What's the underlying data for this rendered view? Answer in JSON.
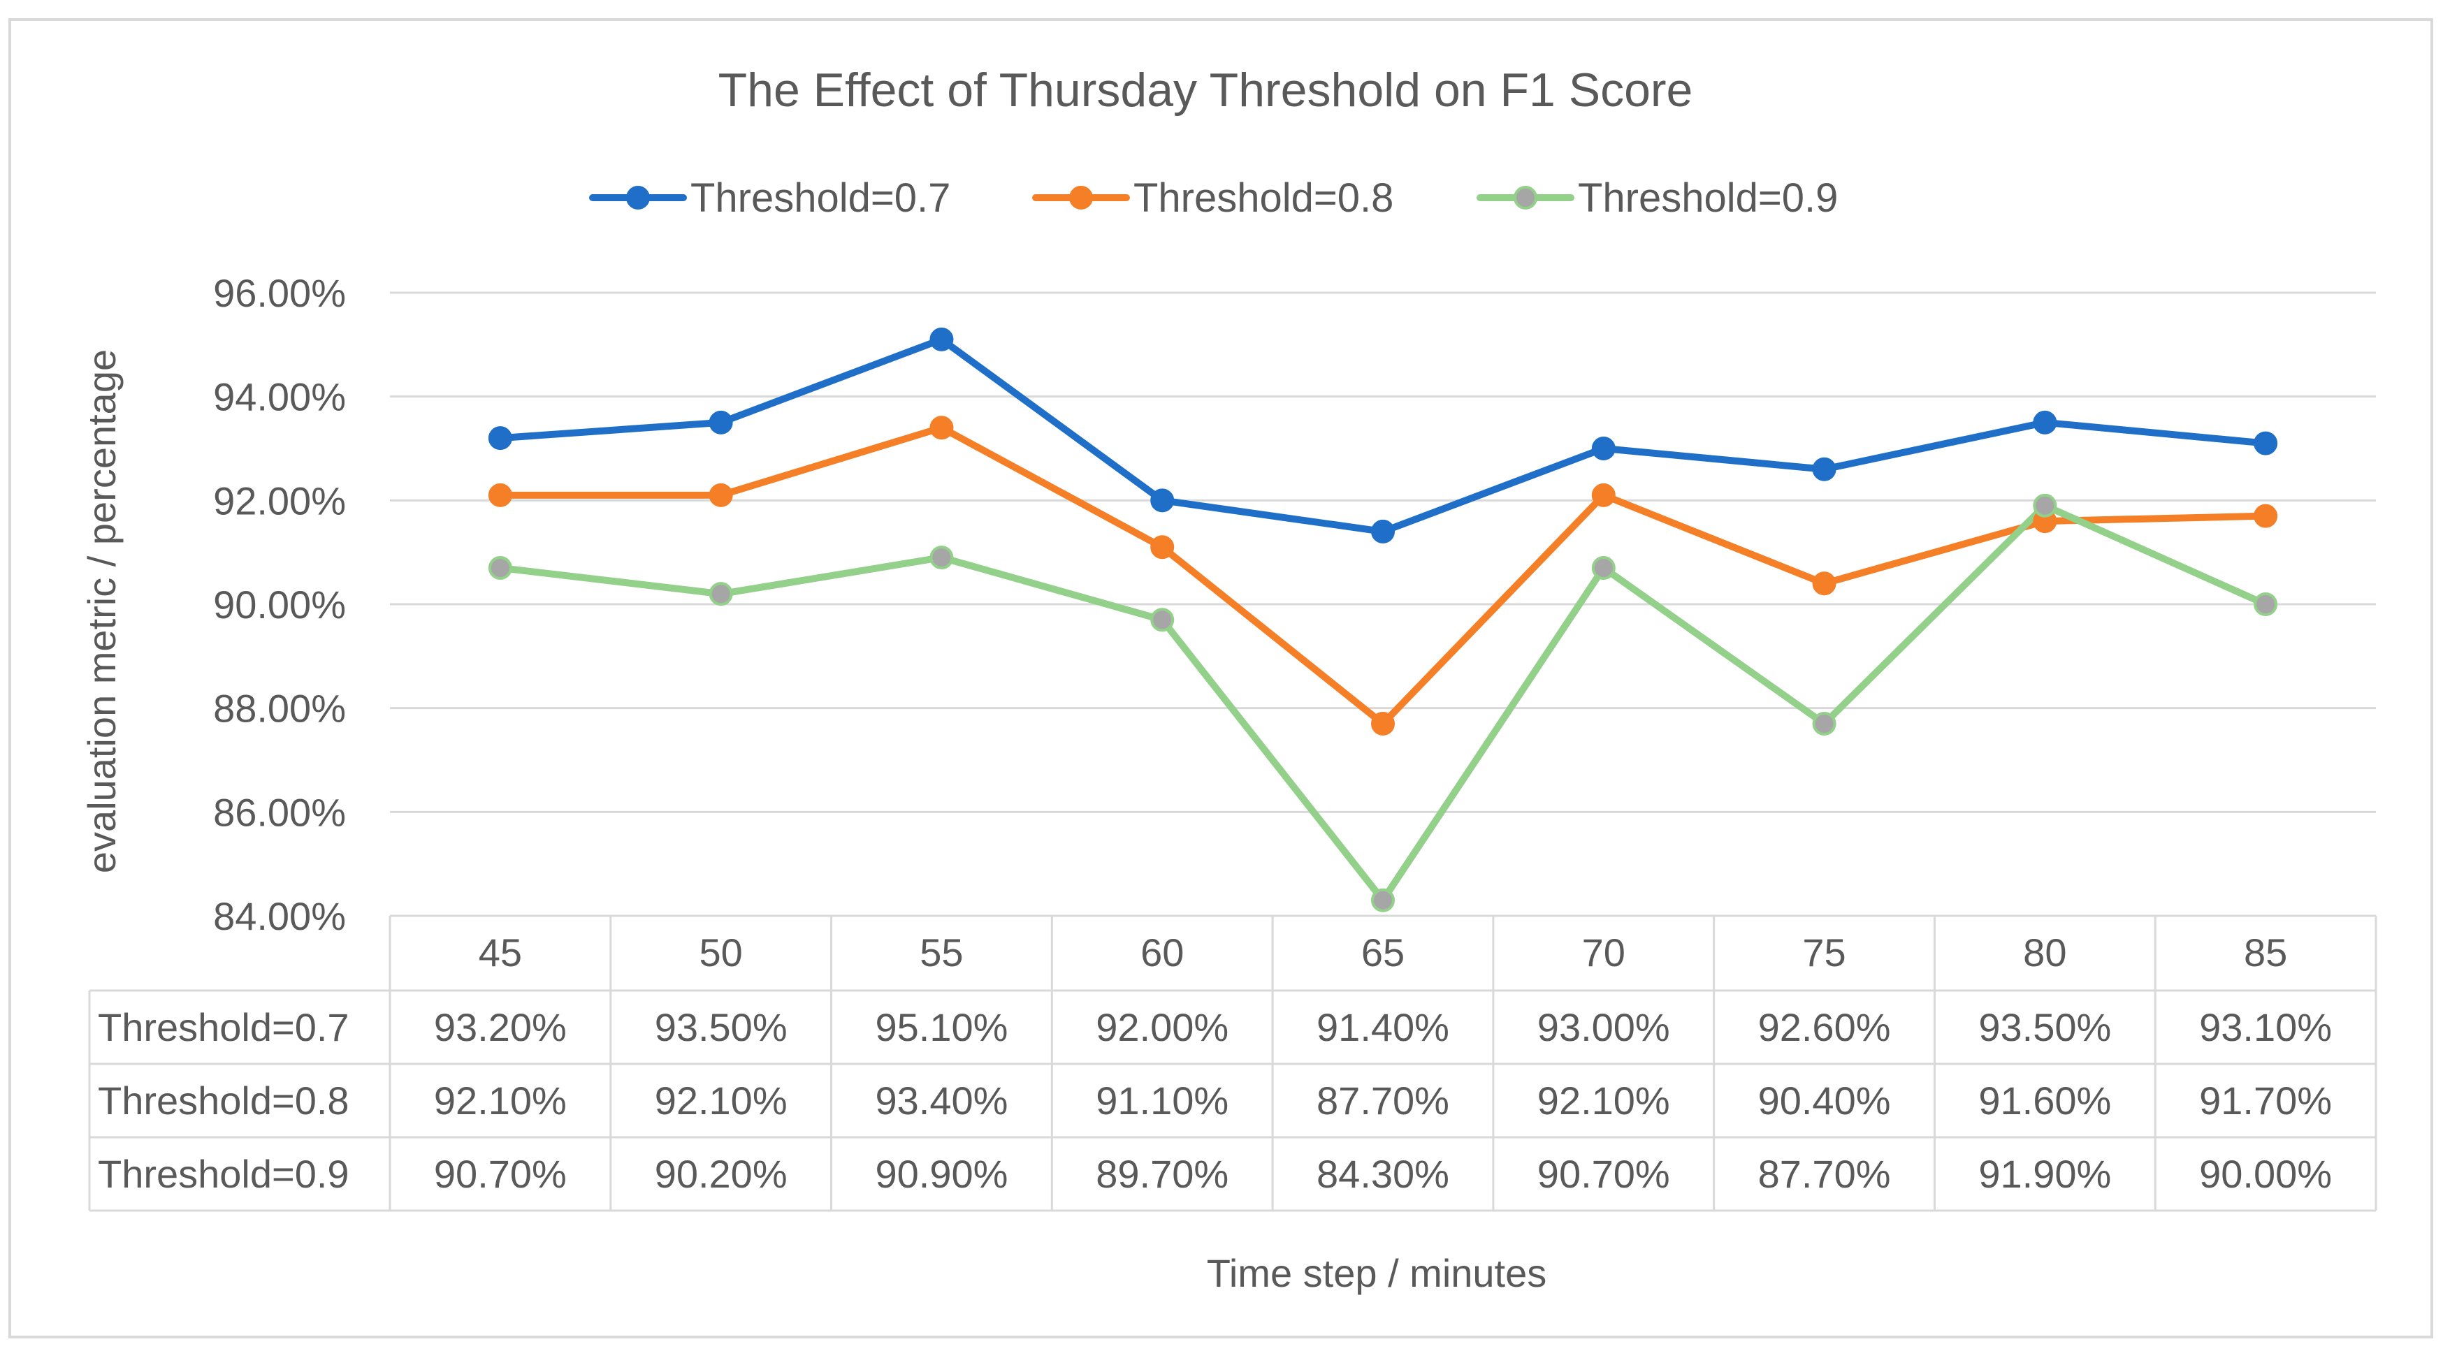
{
  "chart_data": {
    "type": "line",
    "title": "The Effect of Thursday Threshold on F1 Score",
    "xlabel": "Time step / minutes",
    "ylabel": "evaluation metric / percentage",
    "categories": [
      "45",
      "50",
      "55",
      "60",
      "65",
      "70",
      "75",
      "80",
      "85"
    ],
    "ylim": [
      84,
      96
    ],
    "yticks": [
      84,
      86,
      88,
      90,
      92,
      94,
      96
    ],
    "ytick_labels": [
      "84.00%",
      "86.00%",
      "88.00%",
      "90.00%",
      "92.00%",
      "94.00%",
      "96.00%"
    ],
    "grid": true,
    "legend_position": "top",
    "data_table": true,
    "series": [
      {
        "name": "Threshold=0.7",
        "color": "#1F6FC8",
        "marker_fill": "#1F6FC8",
        "marker_stroke": "#1F6FC8",
        "values": [
          93.2,
          93.5,
          95.1,
          92.0,
          91.4,
          93.0,
          92.6,
          93.5,
          93.1
        ],
        "labels": [
          "93.20%",
          "93.50%",
          "95.10%",
          "92.00%",
          "91.40%",
          "93.00%",
          "92.60%",
          "93.50%",
          "93.10%"
        ]
      },
      {
        "name": "Threshold=0.8",
        "color": "#F47F26",
        "marker_fill": "#F47F26",
        "marker_stroke": "#F47F26",
        "values": [
          92.1,
          92.1,
          93.4,
          91.1,
          87.7,
          92.1,
          90.4,
          91.6,
          91.7
        ],
        "labels": [
          "92.10%",
          "92.10%",
          "93.40%",
          "91.10%",
          "87.70%",
          "92.10%",
          "90.40%",
          "91.60%",
          "91.70%"
        ]
      },
      {
        "name": "Threshold=0.9",
        "color": "#93D08A",
        "marker_fill": "#A6A6A6",
        "marker_stroke": "#93D08A",
        "values": [
          90.7,
          90.2,
          90.9,
          89.7,
          84.3,
          90.7,
          87.7,
          91.9,
          90.0
        ],
        "labels": [
          "90.70%",
          "90.20%",
          "90.90%",
          "89.70%",
          "84.30%",
          "90.70%",
          "87.70%",
          "91.90%",
          "90.00%"
        ]
      }
    ]
  }
}
